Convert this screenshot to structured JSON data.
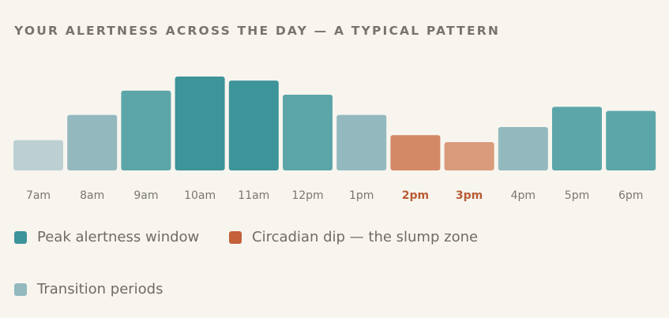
{
  "title": "YOUR ALERTNESS ACROSS THE DAY — A TYPICAL PATTERN",
  "colors": {
    "background": "#f8f5ef",
    "peak": "#3d9499",
    "high": "#5ca6a9",
    "transition": "#93b9bf",
    "low": "#bcd0d4",
    "dip": "#d48966",
    "dip_light": "#da9a7c",
    "dip_label": "#b85c34",
    "label": "#7a7670"
  },
  "legend": [
    {
      "label": "Peak alertness window",
      "color": "#3d9499"
    },
    {
      "label": "Circadian dip — the slump zone",
      "color": "#c4603a"
    },
    {
      "label": "Transition periods",
      "color": "#93b9bf"
    }
  ],
  "chart_data": {
    "type": "bar",
    "title": "YOUR ALERTNESS ACROSS THE DAY — A TYPICAL PATTERN",
    "categories": [
      "7am",
      "8am",
      "9am",
      "10am",
      "11am",
      "12pm",
      "1pm",
      "2pm",
      "3pm",
      "4pm",
      "5pm",
      "6pm"
    ],
    "values": [
      30,
      55,
      79,
      93,
      89,
      75,
      55,
      35,
      28,
      43,
      63,
      59
    ],
    "ylim": [
      0,
      100
    ],
    "bar_colors": [
      "#bcd0d4",
      "#93b9bf",
      "#5ca6a9",
      "#3d9499",
      "#3d9499",
      "#5ca6a9",
      "#93b9bf",
      "#d48966",
      "#da9a7c",
      "#93b9bf",
      "#5ca6a9",
      "#5ca6a9"
    ],
    "highlighted_categories": [
      "2pm",
      "3pm"
    ],
    "grid": false,
    "legend_position": "bottom"
  }
}
